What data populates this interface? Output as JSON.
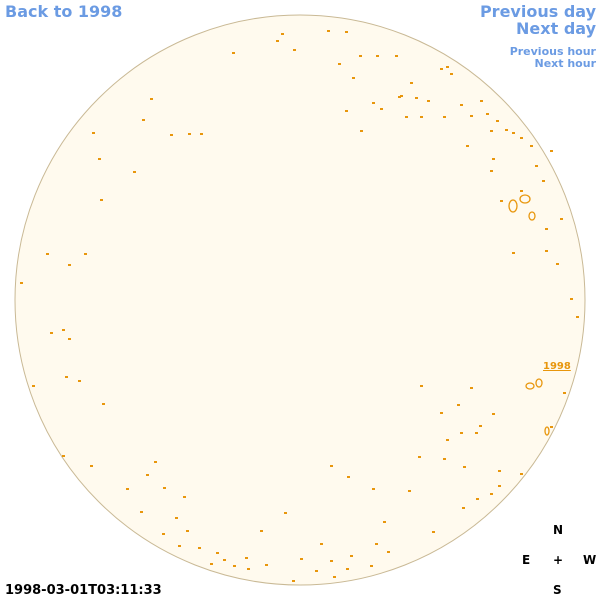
{
  "nav": {
    "back": "Back to 1998",
    "previous_day": "Previous day",
    "next_day": "Next day",
    "previous_hour": "Previous hour",
    "next_hour": "Next hour"
  },
  "region_label": "1998",
  "timestamp": "1998-03-01T03:11:33",
  "compass": {
    "north": "N",
    "east": "E",
    "center": "+",
    "west": "W",
    "south": "S"
  }
}
